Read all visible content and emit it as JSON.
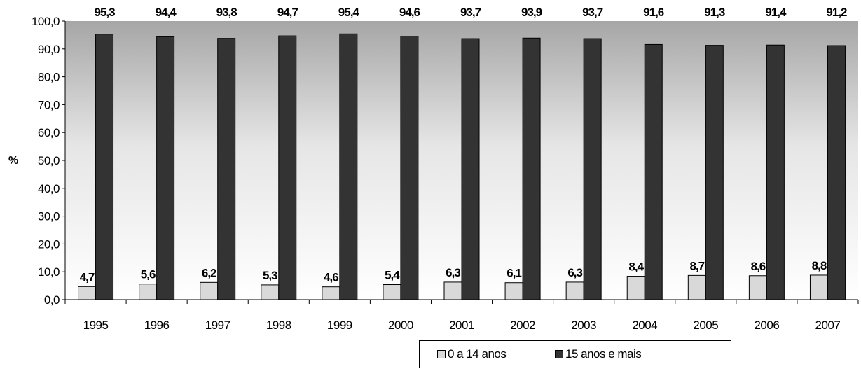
{
  "chart_data": {
    "type": "bar",
    "ylabel": "%",
    "ylim": [
      0,
      100
    ],
    "ytick_step": 10,
    "grid": false,
    "background": "gradient-gray",
    "legend_position": "bottom",
    "categories": [
      "1995",
      "1996",
      "1997",
      "1998",
      "1999",
      "2000",
      "2001",
      "2002",
      "2003",
      "2004",
      "2005",
      "2006",
      "2007"
    ],
    "series": [
      {
        "name": "0 a 14 anos",
        "color": "#d9d9d9",
        "values": [
          4.7,
          5.6,
          6.2,
          5.3,
          4.6,
          5.4,
          6.3,
          6.1,
          6.3,
          8.4,
          8.7,
          8.6,
          8.8
        ],
        "labels": [
          "4,7",
          "5,6",
          "6,2",
          "5,3",
          "4,6",
          "5,4",
          "6,3",
          "6,1",
          "6,3",
          "8,4",
          "8,7",
          "8,6",
          "8,8"
        ]
      },
      {
        "name": "15 anos e mais",
        "color": "#333333",
        "values": [
          95.3,
          94.4,
          93.8,
          94.7,
          95.4,
          94.6,
          93.7,
          93.9,
          93.7,
          91.6,
          91.3,
          91.4,
          91.2
        ],
        "labels": [
          "95,3",
          "94,4",
          "93,8",
          "94,7",
          "95,4",
          "94,6",
          "93,7",
          "93,9",
          "93,7",
          "91,6",
          "91,3",
          "91,4",
          "91,2"
        ]
      }
    ],
    "yticks": [
      "0,0",
      "10,0",
      "20,0",
      "30,0",
      "40,0",
      "50,0",
      "60,0",
      "70,0",
      "80,0",
      "90,0",
      "100,0"
    ]
  }
}
